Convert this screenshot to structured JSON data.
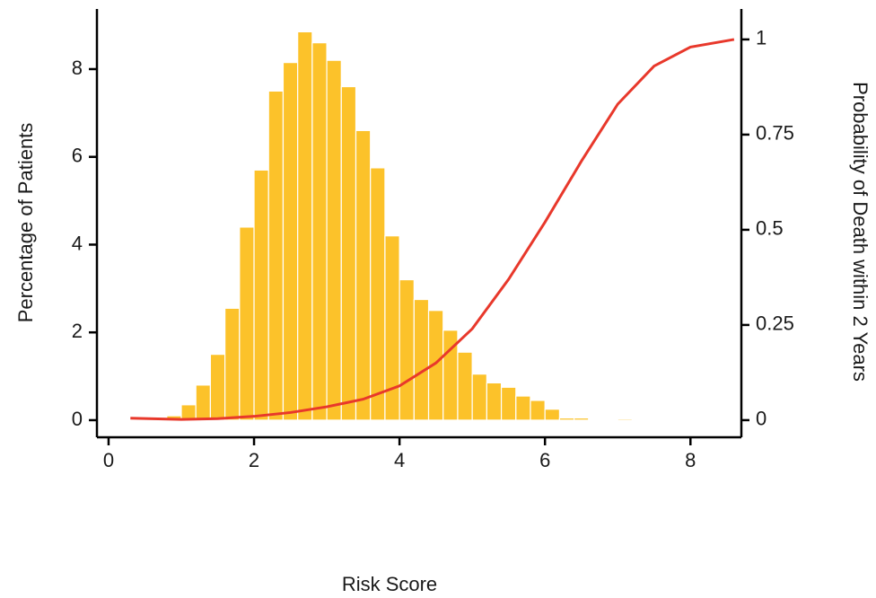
{
  "chart_data": {
    "type": "histogram",
    "xlabel": "Risk Score",
    "ylabel": "Percentage of Patients",
    "y2label": "Probability of Death within 2 Years",
    "bins": [
      0.6,
      0.8,
      1.0,
      1.2,
      1.4,
      1.6,
      1.8,
      2.0,
      2.2,
      2.4,
      2.6,
      2.8,
      3.0,
      3.2,
      3.4,
      3.6,
      3.8,
      4.0,
      4.2,
      4.4,
      4.6,
      4.8,
      5.0,
      5.2,
      5.4,
      5.6,
      5.8,
      6.0,
      6.2,
      6.4,
      6.6,
      6.8,
      7.0,
      7.2,
      7.4,
      7.6,
      7.8,
      8.0,
      8.2,
      8.4,
      8.6
    ],
    "values": [
      0.0,
      0.1,
      0.35,
      0.8,
      1.5,
      2.55,
      4.4,
      5.7,
      7.5,
      8.15,
      8.85,
      8.6,
      8.2,
      7.6,
      6.6,
      5.75,
      4.2,
      3.2,
      2.75,
      2.5,
      2.05,
      1.55,
      1.05,
      0.85,
      0.75,
      0.55,
      0.45,
      0.25,
      0.05,
      0.05,
      0.02,
      0.02,
      0.03,
      0.02,
      0.02,
      0,
      0,
      0.02,
      0.02,
      0.02
    ],
    "color": "#fcc22a",
    "line": {
      "type": "line",
      "axis": "y2",
      "color": "#e8382b",
      "x": [
        0.3,
        1,
        1.5,
        2,
        2.5,
        3,
        3.5,
        4,
        4.5,
        5,
        5.5,
        6,
        6.5,
        7,
        7.5,
        8,
        8.6
      ],
      "values": [
        0.005,
        0.002,
        0.004,
        0.01,
        0.02,
        0.035,
        0.055,
        0.09,
        0.15,
        0.24,
        0.37,
        0.52,
        0.68,
        0.83,
        0.93,
        0.98,
        1.0
      ]
    },
    "xlim": [
      -0.16,
      8.7
    ],
    "ylim": [
      -0.39,
      9.37
    ],
    "y2lim": [
      -0.045,
      1.08
    ],
    "xticks": [
      0,
      2,
      4,
      6,
      8
    ],
    "yticks": [
      0,
      2,
      4,
      6,
      8
    ],
    "y2ticks": [
      0,
      0.25,
      0.5,
      0.75,
      1
    ]
  }
}
